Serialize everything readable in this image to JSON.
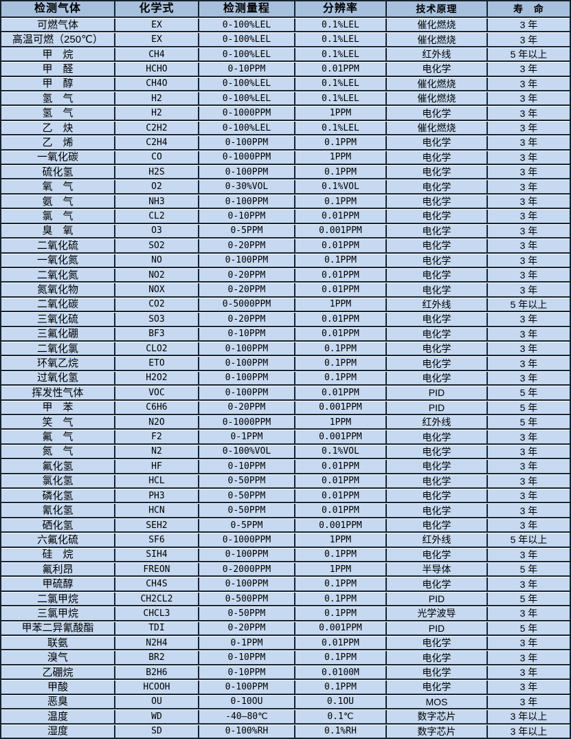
{
  "page": {
    "background_color": "#FFFFFF",
    "description_colors": {
      "header_bg": "#A7C0DE",
      "row_bg": "#C6D9F1",
      "border_dark": "#16222E",
      "separator_white": "#FFFFFF",
      "text_color": "#000000"
    }
  },
  "table": {
    "columns": [
      "检测气体",
      "化学式",
      "检测量程",
      "分辨率",
      "技术原理",
      "寿　命"
    ],
    "column_keys": [
      "gas",
      "formula",
      "range",
      "resolution",
      "principle",
      "lifespan"
    ],
    "rows": [
      [
        "可燃气体",
        "EX",
        "0-100%LEL",
        "0.1%LEL",
        "催化燃烧",
        "3 年"
      ],
      [
        "高温可燃（250℃）",
        "EX",
        "0-100%LEL",
        "0.1%LEL",
        "催化燃烧",
        "3 年"
      ],
      [
        "甲　烷",
        "CH4",
        "0-100%LEL",
        "0.1%LEL",
        "红外线",
        "5 年以上"
      ],
      [
        "甲　醛",
        "HCHO",
        "0-10PPM",
        "0.01PPM",
        "电化学",
        "3 年"
      ],
      [
        "甲　醇",
        "CH4O",
        "0-100%LEL",
        "0.1%LEL",
        "催化燃烧",
        "3 年"
      ],
      [
        "氢　气",
        "H2",
        "0-100%LEL",
        "0.1%LEL",
        "催化燃烧",
        "3 年"
      ],
      [
        "氢　气",
        "H2",
        "0-1000PPM",
        "1PPM",
        "电化学",
        "3 年"
      ],
      [
        "乙　炔",
        "C2H2",
        "0-100%LEL",
        "0.1%LEL",
        "催化燃烧",
        "3 年"
      ],
      [
        "乙　烯",
        "C2H4",
        "0-100PPM",
        "0.1PPM",
        "电化学",
        "3 年"
      ],
      [
        "一氧化碳",
        "CO",
        "0-1000PPM",
        "1PPM",
        "电化学",
        "3 年"
      ],
      [
        "硫化氢",
        "H2S",
        "0-100PPM",
        "0.1PPM",
        "电化学",
        "3 年"
      ],
      [
        "氧　气",
        "O2",
        "0-30%VOL",
        "0.1%VOL",
        "电化学",
        "3 年"
      ],
      [
        "氨　气",
        "NH3",
        "0-100PPM",
        "0.1PPM",
        "电化学",
        "3 年"
      ],
      [
        "氯　气",
        "CL2",
        "0-10PPM",
        "0.01PPM",
        "电化学",
        "3 年"
      ],
      [
        "臭　氧",
        "O3",
        "0-5PPM",
        "0.001PPM",
        "电化学",
        "3 年"
      ],
      [
        "二氧化硫",
        "SO2",
        "0-20PPM",
        "0.01PPM",
        "电化学",
        "3 年"
      ],
      [
        "一氧化氮",
        "NO",
        "0-100PPM",
        "0.1PPM",
        "电化学",
        "3 年"
      ],
      [
        "二氧化氮",
        "NO2",
        "0-20PPM",
        "0.01PPM",
        "电化学",
        "3 年"
      ],
      [
        "氮氧化物",
        "NOX",
        "0-20PPM",
        "0.01PPM",
        "电化学",
        "3 年"
      ],
      [
        "二氧化碳",
        "CO2",
        "0-5000PPM",
        "1PPM",
        "红外线",
        "5 年以上"
      ],
      [
        "三氧化硫",
        "SO3",
        "0-20PPM",
        "0.01PPM",
        "电化学",
        "3 年"
      ],
      [
        "三氟化硼",
        "BF3",
        "0-10PPM",
        "0.01PPM",
        "电化学",
        "3 年"
      ],
      [
        "二氧化氯",
        "CLO2",
        "0-100PPM",
        "0.1PPM",
        "电化学",
        "3 年"
      ],
      [
        "环氧乙烷",
        "ETO",
        "0-100PPM",
        "0.1PPM",
        "电化学",
        "3 年"
      ],
      [
        "过氧化氢",
        "H2O2",
        "0-100PPM",
        "0.1PPM",
        "电化学",
        "3 年"
      ],
      [
        "挥发性气体",
        "VOC",
        "0-100PPM",
        "0.01PPM",
        "PID",
        "5 年"
      ],
      [
        "甲　苯",
        "C6H6",
        "0-20PPM",
        "0.001PPM",
        "PID",
        "5 年"
      ],
      [
        "笑　气",
        "N2O",
        "0-1000PPM",
        "1PPM",
        "红外线",
        "5 年"
      ],
      [
        "氟　气",
        "F2",
        "0-1PPM",
        "0.001PPM",
        "电化学",
        "3 年"
      ],
      [
        "氮　气",
        "N2",
        "0-100%VOL",
        "0.1%VOL",
        "电化学",
        "3 年"
      ],
      [
        "氟化氢",
        "HF",
        "0-10PPM",
        "0.01PPM",
        "电化学",
        "3 年"
      ],
      [
        "氯化氢",
        "HCL",
        "0-50PPM",
        "0.01PPM",
        "电化学",
        "3 年"
      ],
      [
        "磷化氢",
        "PH3",
        "0-50PPM",
        "0.01PPM",
        "电化学",
        "3 年"
      ],
      [
        "氰化氢",
        "HCN",
        "0-50PPM",
        "0.01PPM",
        "电化学",
        "3 年"
      ],
      [
        "硒化氢",
        "SEH2",
        "0-5PPM",
        "0.001PPM",
        "电化学",
        "3 年"
      ],
      [
        "六氟化硫",
        "SF6",
        "0-1000PPM",
        "1PPM",
        "红外线",
        "5 年以上"
      ],
      [
        "硅　烷",
        "SIH4",
        "0-100PPM",
        "0.1PPM",
        "电化学",
        "3 年"
      ],
      [
        "氟利昂",
        "FREON",
        "0-2000PPM",
        "1PPM",
        "半导体",
        "5 年"
      ],
      [
        "甲硫醇",
        "CH4S",
        "0-100PPM",
        "0.1PPM",
        "电化学",
        "3 年"
      ],
      [
        "二氯甲烷",
        "CH2CL2",
        "0-500PPM",
        "0.1PPM",
        "PID",
        "5 年"
      ],
      [
        "三氯甲烷",
        "CHCL3",
        "0-50PPM",
        "0.1PPM",
        "光学波导",
        "3 年"
      ],
      [
        "甲苯二异氰酸酯",
        "TDI",
        "0-20PPM",
        "0.001PPM",
        "PID",
        "5 年"
      ],
      [
        "联氨",
        "N2H4",
        "0-1PPM",
        "0.01PPM",
        "电化学",
        "3 年"
      ],
      [
        "溴气",
        "BR2",
        "0-10PPM",
        "0.1PPM",
        "电化学",
        "3 年"
      ],
      [
        "乙硼烷",
        "B2H6",
        "0-10PPM",
        "0.0100M",
        "电化学",
        "3 年"
      ],
      [
        "甲酸",
        "HCOOH",
        "0-100PPM",
        "0.1PPM",
        "电化学",
        "3 年"
      ],
      [
        "恶臭",
        "OU",
        "0-10OU",
        "0.1OU",
        "MOS",
        "3 年"
      ],
      [
        "温度",
        "WD",
        "-40—80℃",
        "0.1℃",
        "数字芯片",
        "3 年以上"
      ],
      [
        "湿度",
        "SD",
        "0-100%RH",
        "0.1%RH",
        "数字芯片",
        "3 年以上"
      ]
    ]
  }
}
